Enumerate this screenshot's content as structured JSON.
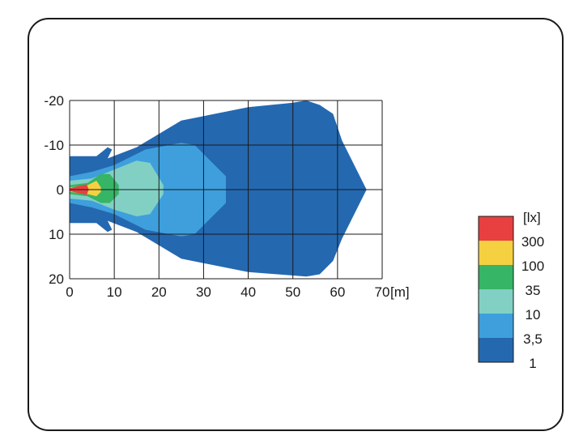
{
  "chart_data": {
    "type": "heatmap",
    "title": "",
    "xlabel": "[m]",
    "ylabel": "",
    "xlim": [
      0,
      70
    ],
    "ylim": [
      -20,
      20
    ],
    "y_inverted": true,
    "grid": true,
    "x_ticks": [
      "0",
      "10",
      "20",
      "30",
      "40",
      "50",
      "60",
      "70"
    ],
    "y_ticks": [
      "-20",
      "-10",
      "0",
      "10",
      "20"
    ],
    "legend": {
      "unit": "[lx]",
      "position": "right",
      "entries": [
        {
          "label": "300",
          "color": "#e84040"
        },
        {
          "label": "100",
          "color": "#f5d040"
        },
        {
          "label": "35",
          "color": "#35b565"
        },
        {
          "label": "10",
          "color": "#82d0c4"
        },
        {
          "label": "3,5",
          "color": "#3e9fdc"
        },
        {
          "label": "1",
          "color": "#2468b0"
        }
      ]
    },
    "contours": [
      {
        "level": "1",
        "color": "#2468b0",
        "points": [
          [
            0,
            -7.5
          ],
          [
            6,
            -7.5
          ],
          [
            8.5,
            -9.5
          ],
          [
            9.5,
            -9
          ],
          [
            8.5,
            -7
          ],
          [
            15,
            -9.5
          ],
          [
            25,
            -15.5
          ],
          [
            40,
            -18.5
          ],
          [
            50,
            -19.5
          ],
          [
            53,
            -20
          ],
          [
            56,
            -19
          ],
          [
            59,
            -17
          ],
          [
            61,
            -11
          ],
          [
            65,
            -3
          ],
          [
            66.5,
            0
          ],
          [
            65,
            3
          ],
          [
            61,
            11
          ],
          [
            59,
            16
          ],
          [
            56,
            19
          ],
          [
            53,
            19.5
          ],
          [
            40,
            18.5
          ],
          [
            25,
            15.5
          ],
          [
            15,
            9.5
          ],
          [
            8.5,
            7
          ],
          [
            9.5,
            9
          ],
          [
            8.5,
            9.5
          ],
          [
            6,
            7.5
          ],
          [
            0,
            7.5
          ]
        ]
      },
      {
        "level": "3,5",
        "color": "#3e9fdc",
        "points": [
          [
            0,
            -3
          ],
          [
            5,
            -4
          ],
          [
            10,
            -5.5
          ],
          [
            17,
            -9
          ],
          [
            25,
            -10.5
          ],
          [
            28,
            -10
          ],
          [
            35,
            -3
          ],
          [
            35,
            3
          ],
          [
            28,
            10
          ],
          [
            25,
            10.5
          ],
          [
            17,
            9
          ],
          [
            10,
            5.5
          ],
          [
            5,
            4
          ],
          [
            0,
            3
          ]
        ]
      },
      {
        "level": "10",
        "color": "#82d0c4",
        "points": [
          [
            0,
            -2
          ],
          [
            5,
            -2.5
          ],
          [
            10,
            -4.5
          ],
          [
            15,
            -6.5
          ],
          [
            18,
            -6
          ],
          [
            21,
            -1
          ],
          [
            21,
            1
          ],
          [
            18,
            5.5
          ],
          [
            15,
            6
          ],
          [
            10,
            4.5
          ],
          [
            5,
            2.5
          ],
          [
            0,
            2
          ]
        ]
      },
      {
        "level": "35",
        "color": "#35b565",
        "points": [
          [
            0,
            -1
          ],
          [
            4,
            -1.5
          ],
          [
            7,
            -3.5
          ],
          [
            9,
            -3.5
          ],
          [
            11,
            -1
          ],
          [
            11,
            1
          ],
          [
            9,
            3
          ],
          [
            7,
            3
          ],
          [
            4,
            1.5
          ],
          [
            0,
            1
          ]
        ]
      },
      {
        "level": "100",
        "color": "#f5d040",
        "points": [
          [
            0,
            -0.5
          ],
          [
            4,
            -1
          ],
          [
            6,
            -2
          ],
          [
            7,
            -0.5
          ],
          [
            7,
            0.5
          ],
          [
            6,
            1.5
          ],
          [
            4,
            1
          ],
          [
            0,
            0.5
          ]
        ]
      },
      {
        "level": "300",
        "color": "#e84040",
        "points": [
          [
            0,
            -0.3
          ],
          [
            2,
            -0.8
          ],
          [
            3.8,
            -1.2
          ],
          [
            4.3,
            0
          ],
          [
            3.8,
            1.2
          ],
          [
            2,
            0.8
          ],
          [
            0,
            0.3
          ]
        ]
      }
    ]
  }
}
